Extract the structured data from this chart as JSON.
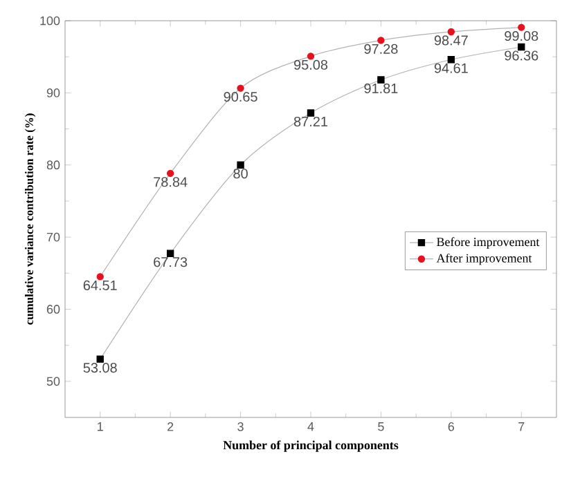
{
  "chart_data": {
    "type": "line",
    "xlabel": "Number of principal components",
    "ylabel": "cumulative variance contribution rate (%)",
    "x": [
      1,
      2,
      3,
      4,
      5,
      6,
      7
    ],
    "series": [
      {
        "name": "Before improvement",
        "color": "#000000",
        "marker": "square",
        "values": [
          53.08,
          67.73,
          80,
          87.21,
          91.81,
          94.61,
          96.36
        ]
      },
      {
        "name": "After improvement",
        "color": "#e8101c",
        "marker": "circle",
        "values": [
          64.51,
          78.84,
          90.65,
          95.08,
          97.28,
          98.47,
          99.08
        ]
      }
    ],
    "xlim": [
      0.5,
      7.5
    ],
    "ylim": [
      45,
      100
    ],
    "xticks": [
      1,
      2,
      3,
      4,
      5,
      6,
      7
    ],
    "yticks": [
      50,
      60,
      70,
      80,
      90,
      100
    ],
    "data_labels": true,
    "legend": "right",
    "grid": false
  }
}
